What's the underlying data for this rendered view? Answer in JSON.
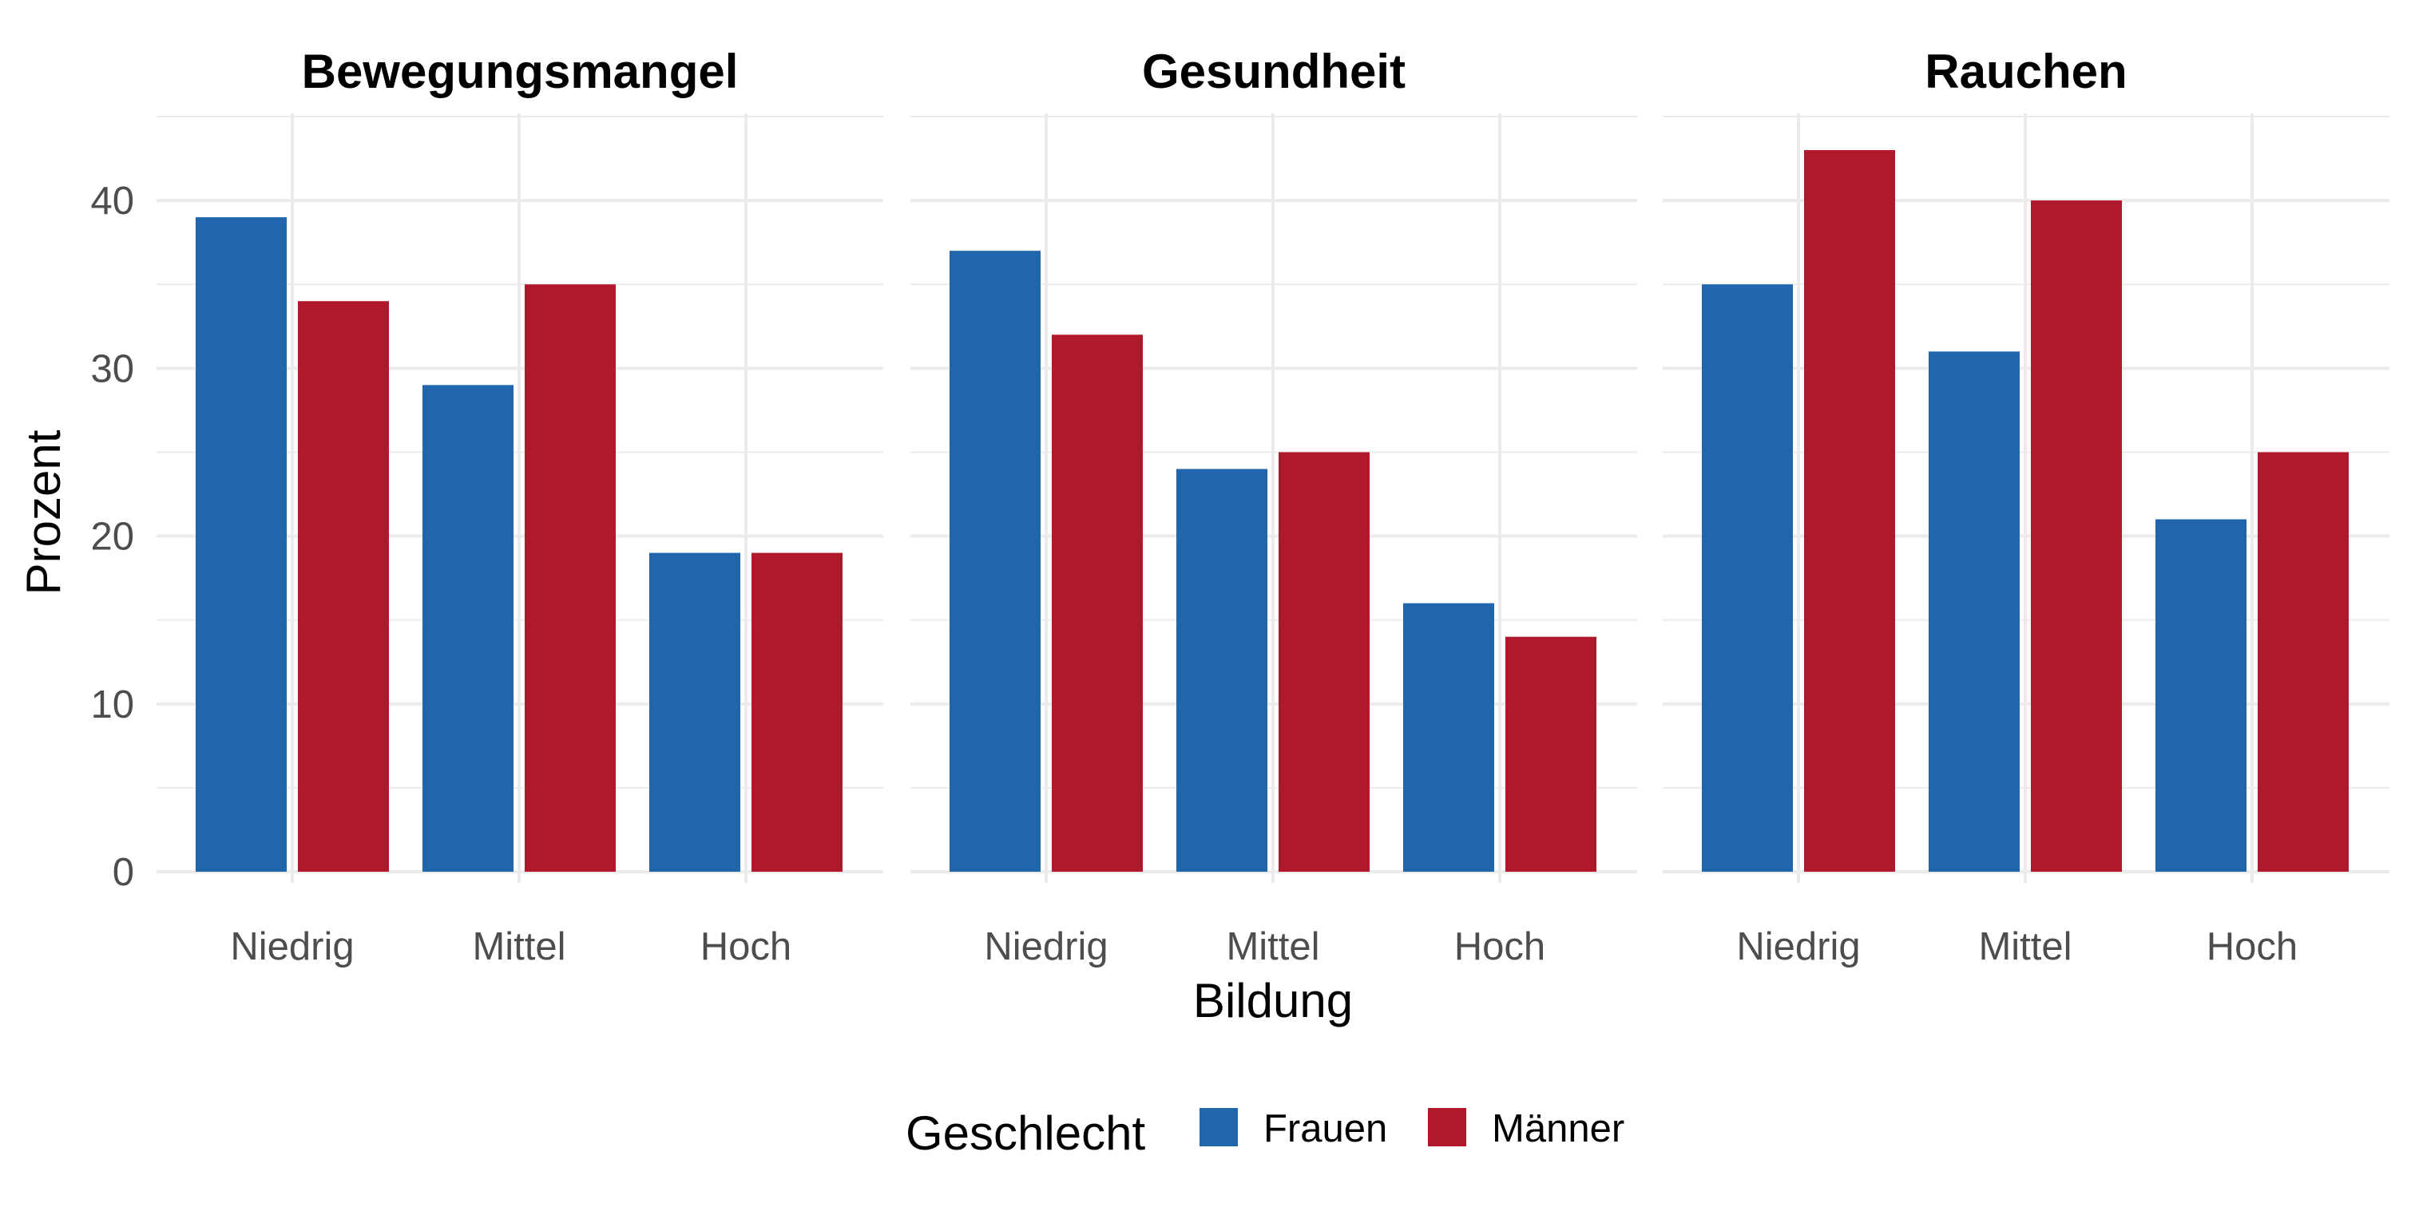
{
  "chart_data": {
    "type": "bar",
    "xlabel": "Bildung",
    "ylabel": "Prozent",
    "ylim": [
      0,
      45
    ],
    "yticks": [
      0,
      10,
      20,
      30,
      40
    ],
    "grid": true,
    "legend": {
      "title": "Geschlecht",
      "placement": "bottom",
      "entries": [
        {
          "name": "Frauen",
          "color": "#2166AC"
        },
        {
          "name": "Männer",
          "color": "#B2182B"
        }
      ]
    },
    "categories": [
      "Niedrig",
      "Mittel",
      "Hoch"
    ],
    "facets": [
      {
        "title": "Bewegungsmangel",
        "series": [
          {
            "name": "Frauen",
            "values": [
              39,
              29,
              19
            ]
          },
          {
            "name": "Männer",
            "values": [
              34,
              35,
              19
            ]
          }
        ]
      },
      {
        "title": "Gesundheit",
        "series": [
          {
            "name": "Frauen",
            "values": [
              37,
              24,
              16
            ]
          },
          {
            "name": "Männer",
            "values": [
              32,
              25,
              14
            ]
          }
        ]
      },
      {
        "title": "Rauchen",
        "series": [
          {
            "name": "Frauen",
            "values": [
              35,
              31,
              21
            ]
          },
          {
            "name": "Männer",
            "values": [
              43,
              40,
              25
            ]
          }
        ]
      }
    ]
  }
}
